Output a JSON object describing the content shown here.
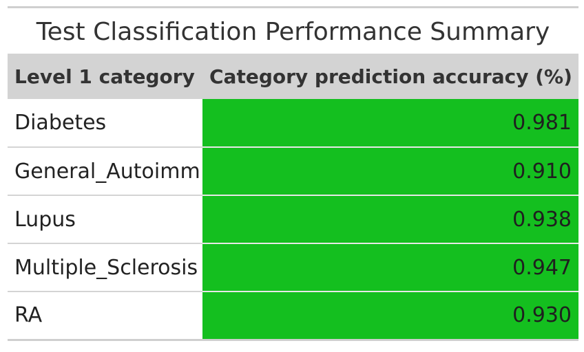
{
  "chart_data": {
    "type": "table",
    "title": "Test Classification Performance Summary",
    "columns": [
      "Level 1 category",
      "Category prediction accuracy (%)"
    ],
    "rows": [
      {
        "category": "Diabetes",
        "accuracy": "0.981"
      },
      {
        "category": "General_Autoimm",
        "accuracy": "0.910"
      },
      {
        "category": "Lupus",
        "accuracy": "0.938"
      },
      {
        "category": "Multiple_Sclerosis",
        "accuracy": "0.947"
      },
      {
        "category": "RA",
        "accuracy": "0.930"
      }
    ],
    "colors": {
      "header_background": "#d3d3d3",
      "value_cell_background": "#14bf1f"
    }
  }
}
